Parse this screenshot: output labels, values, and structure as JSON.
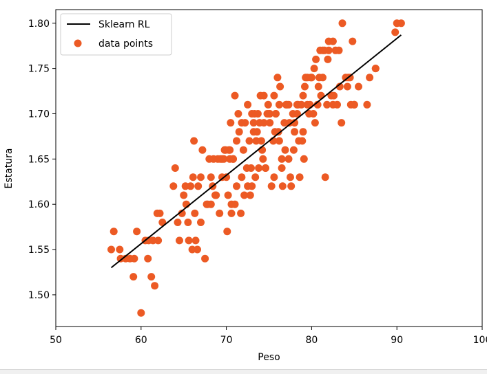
{
  "colors": {
    "line": "#000000",
    "points": "#EC5A24",
    "axes": "#000000",
    "background": "#ffffff"
  },
  "chart_data": {
    "type": "scatter",
    "xlabel": "Peso",
    "ylabel": "Estatura",
    "xlim": [
      50,
      100
    ],
    "ylim": [
      1.465,
      1.815
    ],
    "x_ticks": [
      50,
      60,
      70,
      80,
      90,
      100
    ],
    "x_tick_labels": [
      "50",
      "60",
      "70",
      "80",
      "90",
      "100"
    ],
    "y_ticks": [
      1.5,
      1.55,
      1.6,
      1.65,
      1.7,
      1.75,
      1.8
    ],
    "y_tick_labels": [
      "1.50",
      "1.55",
      "1.60",
      "1.65",
      "1.70",
      "1.75",
      "1.80"
    ],
    "grid": false,
    "legend": {
      "position": "top-left",
      "entries": [
        {
          "label": "Sklearn RL",
          "kind": "line"
        },
        {
          "label": "data points",
          "kind": "marker"
        }
      ]
    },
    "series": [
      {
        "name": "Sklearn RL",
        "kind": "line",
        "x": [
          56.5,
          90.5
        ],
        "y": [
          1.53,
          1.787
        ]
      },
      {
        "name": "data points",
        "kind": "scatter",
        "x": [
          56.5,
          56.8,
          57.5,
          57.6,
          58.2,
          58.7,
          59.1,
          59.2,
          59.5,
          60.0,
          60.5,
          60.8,
          60.9,
          61.2,
          61.4,
          61.6,
          61.9,
          62.0,
          62.2,
          62.5,
          63.8,
          64.0,
          64.3,
          64.5,
          64.8,
          65.0,
          65.2,
          65.3,
          65.5,
          65.6,
          65.8,
          66.0,
          66.1,
          66.2,
          66.3,
          66.4,
          66.6,
          67.0,
          67.2,
          67.5,
          67.8,
          68.0,
          68.2,
          68.5,
          68.7,
          69.0,
          69.2,
          69.5,
          69.8,
          70.0,
          70.1,
          70.2,
          70.4,
          70.5,
          70.6,
          70.8,
          71.0,
          71.2,
          71.5,
          71.8,
          72.0,
          72.2,
          72.5,
          72.7,
          73.0,
          73.2,
          73.4,
          73.6,
          73.8,
          74.0,
          74.2,
          74.4,
          74.6,
          74.8,
          75.0,
          75.3,
          75.5,
          75.8,
          76.0,
          76.2,
          76.5,
          76.8,
          77.0,
          77.3,
          77.5,
          77.8,
          78.0,
          78.3,
          78.5,
          78.8,
          79.0,
          79.3,
          79.5,
          79.8,
          80.0,
          80.3,
          80.5,
          80.8,
          81.0,
          81.3,
          81.5,
          81.8,
          82.0,
          82.3,
          82.5,
          83.0,
          83.5,
          84.0,
          84.5,
          85.0,
          86.5,
          86.8,
          87.5,
          89.8,
          90.0,
          90.5,
          72.5,
          71.0,
          73.3,
          74.1,
          75.1,
          75.7,
          76.5,
          76.9,
          78.0,
          79.2,
          68.2,
          69.5,
          70.3,
          71.8,
          72.8,
          73.9,
          75.6,
          77.4,
          78.3,
          80.2,
          81.6,
          82.6,
          83.3,
          84.3,
          85.0,
          87.5,
          70.6,
          71.7,
          73.0,
          74.3,
          75.6,
          76.6,
          77.1,
          78.9,
          79.7,
          80.7,
          81.3,
          81.9,
          82.5,
          83.6,
          84.6,
          66.7,
          67.7,
          68.8,
          69.7,
          71.2,
          72.1,
          73.2,
          74.6,
          75.1,
          76.3,
          77.3,
          78.4,
          79.0,
          79.9,
          80.9,
          82.0,
          83.2,
          84.2,
          69.3,
          69.9,
          70.8,
          72.4,
          73.5,
          74.4,
          76.1,
          74.9,
          75.8,
          77.6,
          79.5,
          71.4,
          72.9,
          67.0,
          68.4,
          70.4,
          73.7,
          78.6,
          81.1,
          82.8,
          85.5,
          76.2,
          77.9,
          80.4,
          84.8,
          79.1
        ],
        "y": [
          1.55,
          1.57,
          1.55,
          1.54,
          1.54,
          1.54,
          1.52,
          1.54,
          1.57,
          1.48,
          1.56,
          1.54,
          1.56,
          1.52,
          1.56,
          1.51,
          1.59,
          1.56,
          1.59,
          1.58,
          1.62,
          1.64,
          1.58,
          1.56,
          1.59,
          1.61,
          1.62,
          1.6,
          1.58,
          1.56,
          1.62,
          1.55,
          1.63,
          1.67,
          1.59,
          1.56,
          1.55,
          1.58,
          1.66,
          1.54,
          1.6,
          1.65,
          1.63,
          1.65,
          1.61,
          1.65,
          1.59,
          1.65,
          1.66,
          1.63,
          1.57,
          1.61,
          1.66,
          1.69,
          1.59,
          1.65,
          1.72,
          1.67,
          1.68,
          1.63,
          1.66,
          1.69,
          1.71,
          1.67,
          1.7,
          1.69,
          1.63,
          1.68,
          1.64,
          1.72,
          1.66,
          1.69,
          1.64,
          1.7,
          1.7,
          1.62,
          1.67,
          1.7,
          1.74,
          1.67,
          1.65,
          1.69,
          1.71,
          1.65,
          1.63,
          1.7,
          1.69,
          1.7,
          1.67,
          1.71,
          1.72,
          1.74,
          1.74,
          1.71,
          1.74,
          1.75,
          1.76,
          1.73,
          1.77,
          1.74,
          1.77,
          1.71,
          1.78,
          1.72,
          1.71,
          1.71,
          1.69,
          1.74,
          1.74,
          1.71,
          1.71,
          1.74,
          1.75,
          1.79,
          1.8,
          1.8,
          1.62,
          1.6,
          1.7,
          1.67,
          1.7,
          1.68,
          1.64,
          1.66,
          1.68,
          1.73,
          1.6,
          1.63,
          1.66,
          1.69,
          1.61,
          1.69,
          1.63,
          1.69,
          1.71,
          1.7,
          1.63,
          1.72,
          1.73,
          1.74,
          1.71,
          1.75,
          1.6,
          1.59,
          1.62,
          1.65,
          1.72,
          1.62,
          1.71,
          1.67,
          1.7,
          1.71,
          1.77,
          1.76,
          1.78,
          1.8,
          1.71,
          1.62,
          1.6,
          1.61,
          1.65,
          1.62,
          1.61,
          1.68,
          1.64,
          1.69,
          1.73,
          1.71,
          1.71,
          1.68,
          1.74,
          1.74,
          1.77,
          1.77,
          1.73,
          1.65,
          1.66,
          1.65,
          1.64,
          1.67,
          1.72,
          1.68,
          1.71,
          1.7,
          1.62,
          1.71,
          1.7,
          1.64,
          1.63,
          1.62,
          1.65,
          1.7,
          1.63,
          1.72,
          1.77,
          1.73,
          1.71,
          1.66,
          1.69,
          1.78,
          1.65
        ]
      }
    ]
  }
}
